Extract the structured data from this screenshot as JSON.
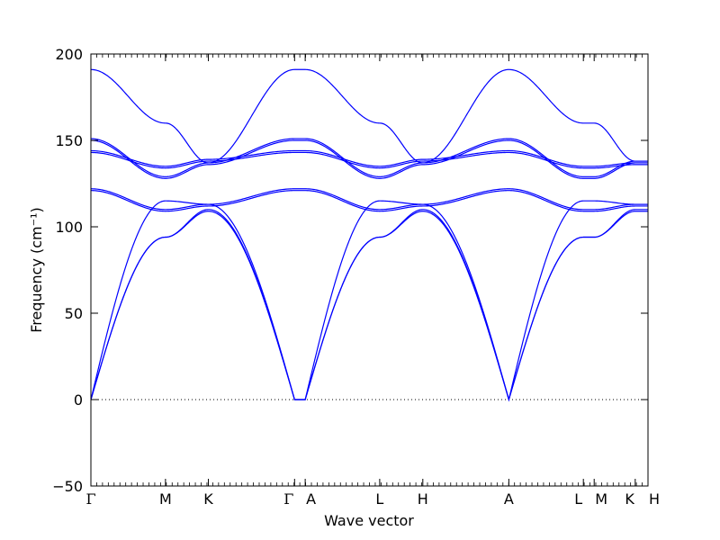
{
  "chart_data": {
    "type": "line",
    "title": "",
    "xlabel": "Wave vector",
    "ylabel": "Frequency (cm⁻¹)",
    "ylim": [
      -50,
      200
    ],
    "y_ticks": [
      -50,
      0,
      50,
      100,
      150,
      200
    ],
    "y_tick_labels": [
      "−50",
      "0",
      "50",
      "100",
      "150",
      "200"
    ],
    "grid": false,
    "legend": "none",
    "color": "#0000ff",
    "zero_line": {
      "y": 0,
      "style": "dotted",
      "color": "#000000"
    },
    "path": [
      {
        "label": "Γ",
        "x": 0.0
      },
      {
        "label": "M",
        "x": 0.1339
      },
      {
        "label": "K",
        "x": 0.2109
      },
      {
        "label": "Γ",
        "x": 0.3656
      },
      {
        "label": "A",
        "x": 0.3847
      },
      {
        "label": "L",
        "x": 0.5184
      },
      {
        "label": "H",
        "x": 0.5958
      },
      {
        "label": "A",
        "x": 0.7502
      },
      {
        "label": "L",
        "x": 0.884
      },
      {
        "label": "M",
        "x": 0.9034
      },
      {
        "label": "K",
        "x": 0.9771
      },
      {
        "label": "H",
        "x": 1.0
      }
    ],
    "series": [
      {
        "values": [
          191,
          160,
          137,
          191,
          191,
          160,
          137,
          191,
          160,
          160,
          138,
          138
        ]
      },
      {
        "values": [
          151,
          129,
          137,
          151,
          151,
          129,
          137,
          151,
          129,
          129,
          138,
          138
        ]
      },
      {
        "values": [
          150,
          128,
          136,
          150,
          150,
          128,
          136,
          150,
          128,
          128,
          137,
          137
        ]
      },
      {
        "values": [
          144,
          135,
          139,
          144,
          144,
          135,
          139,
          144,
          135,
          135,
          137,
          137
        ]
      },
      {
        "values": [
          143,
          134,
          138,
          143,
          143,
          134,
          138,
          143,
          134,
          134,
          136,
          136
        ]
      },
      {
        "values": [
          122,
          110,
          113,
          122,
          122,
          110,
          113,
          122,
          110,
          110,
          113,
          113
        ]
      },
      {
        "values": [
          121,
          109,
          112,
          121,
          121,
          109,
          112,
          121,
          109,
          109,
          112,
          112
        ]
      },
      {
        "values": [
          0,
          115,
          113,
          0,
          0,
          115,
          113,
          0,
          115,
          115,
          113,
          113
        ]
      },
      {
        "values": [
          0,
          94,
          110,
          0,
          0,
          94,
          110,
          0,
          94,
          94,
          110,
          110
        ]
      },
      {
        "values": [
          0,
          94,
          109,
          0,
          0,
          94,
          109,
          0,
          94,
          94,
          109,
          109
        ]
      }
    ]
  }
}
